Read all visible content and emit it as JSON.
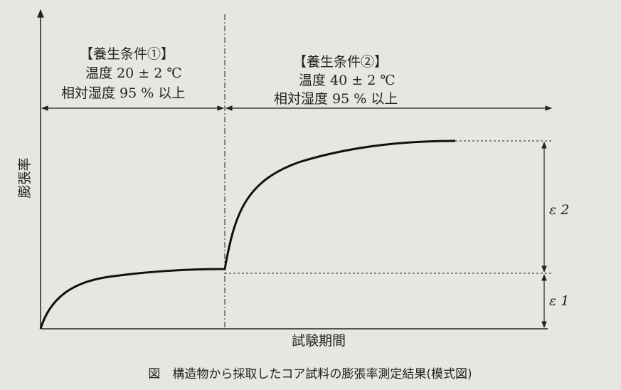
{
  "condition1": {
    "title": "【養生条件①】",
    "temperature": "温度 20 ± 2 ℃",
    "humidity": "相対湿度 95 % 以上"
  },
  "condition2": {
    "title": "【養生条件②】",
    "temperature": "温度 40 ± 2 ℃",
    "humidity": "相対湿度 95 % 以上"
  },
  "y_axis_label": "膨張率",
  "x_axis_label": "試験期間",
  "epsilon2": "ε 2",
  "epsilon1": "ε 1",
  "caption": "図　構造物から採取したコア試料の膨張率測定結果(模式図)"
}
